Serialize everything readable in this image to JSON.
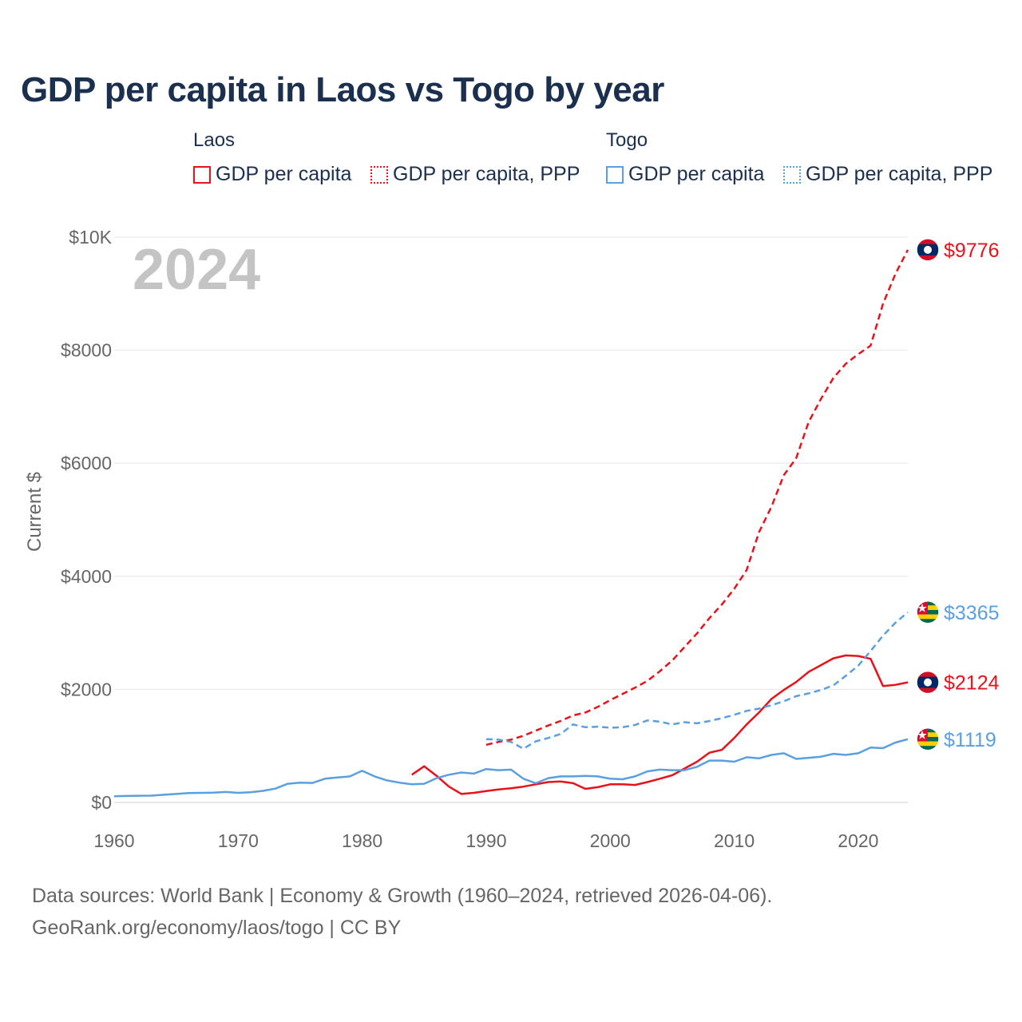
{
  "title": "GDP per capita in Laos vs Togo by year",
  "legend": {
    "groups": [
      {
        "name": "Laos",
        "items": [
          "GDP per capita",
          "GDP per capita, PPP"
        ]
      },
      {
        "name": "Togo",
        "items": [
          "GDP per capita",
          "GDP per capita, PPP"
        ]
      }
    ]
  },
  "footer": {
    "sources": "Data sources: World Bank | Economy & Growth (1960–2024, retrieved 2026-04-06).",
    "credit": "GeoRank.org/economy/laos/togo | CC BY"
  },
  "colors": {
    "laos": "#e8121b",
    "togo": "#5aa0e0",
    "grid": "#e6e6e6",
    "axis_text": "#666666",
    "year_watermark": "#c4c4c4"
  },
  "chart_data": {
    "type": "line",
    "title": "GDP per capita in Laos vs Togo by year",
    "xlabel": "",
    "ylabel": "Current $",
    "xlim": [
      1960,
      2024
    ],
    "ylim": [
      0,
      10000
    ],
    "year_label": "2024",
    "x_ticks": [
      1960,
      1970,
      1980,
      1990,
      2000,
      2010,
      2020
    ],
    "x_tick_labels": [
      "1960",
      "1970",
      "1980",
      "1990",
      "2000",
      "2010",
      "2020"
    ],
    "y_ticks": [
      0,
      2000,
      4000,
      6000,
      8000,
      10000
    ],
    "y_tick_labels": [
      "$0",
      "$2000",
      "$4000",
      "$6000",
      "$8000",
      "$10K"
    ],
    "series": [
      {
        "name": "Laos GDP per capita",
        "country": "laos",
        "style": "solid",
        "end_label": "$2124",
        "points": [
          [
            1984,
            490
          ],
          [
            1985,
            640
          ],
          [
            1986,
            470
          ],
          [
            1987,
            280
          ],
          [
            1988,
            150
          ],
          [
            1989,
            170
          ],
          [
            1990,
            200
          ],
          [
            1991,
            230
          ],
          [
            1992,
            250
          ],
          [
            1993,
            280
          ],
          [
            1994,
            320
          ],
          [
            1995,
            360
          ],
          [
            1996,
            370
          ],
          [
            1997,
            340
          ],
          [
            1998,
            240
          ],
          [
            1999,
            270
          ],
          [
            2000,
            320
          ],
          [
            2001,
            320
          ],
          [
            2002,
            310
          ],
          [
            2003,
            360
          ],
          [
            2004,
            420
          ],
          [
            2005,
            480
          ],
          [
            2006,
            600
          ],
          [
            2007,
            720
          ],
          [
            2008,
            880
          ],
          [
            2009,
            930
          ],
          [
            2010,
            1140
          ],
          [
            2011,
            1380
          ],
          [
            2012,
            1590
          ],
          [
            2013,
            1830
          ],
          [
            2014,
            1990
          ],
          [
            2015,
            2130
          ],
          [
            2016,
            2310
          ],
          [
            2017,
            2430
          ],
          [
            2018,
            2550
          ],
          [
            2019,
            2600
          ],
          [
            2020,
            2590
          ],
          [
            2021,
            2540
          ],
          [
            2022,
            2060
          ],
          [
            2023,
            2080
          ],
          [
            2024,
            2124
          ]
        ]
      },
      {
        "name": "Laos GDP per capita, PPP",
        "country": "laos",
        "style": "dashed",
        "end_label": "$9776",
        "points": [
          [
            1990,
            1020
          ],
          [
            1991,
            1070
          ],
          [
            1992,
            1110
          ],
          [
            1993,
            1180
          ],
          [
            1994,
            1270
          ],
          [
            1995,
            1360
          ],
          [
            1996,
            1440
          ],
          [
            1997,
            1540
          ],
          [
            1998,
            1590
          ],
          [
            1999,
            1690
          ],
          [
            2000,
            1810
          ],
          [
            2001,
            1920
          ],
          [
            2002,
            2030
          ],
          [
            2003,
            2150
          ],
          [
            2004,
            2320
          ],
          [
            2005,
            2510
          ],
          [
            2006,
            2750
          ],
          [
            2007,
            2990
          ],
          [
            2008,
            3260
          ],
          [
            2009,
            3500
          ],
          [
            2010,
            3780
          ],
          [
            2011,
            4110
          ],
          [
            2012,
            4780
          ],
          [
            2013,
            5230
          ],
          [
            2014,
            5790
          ],
          [
            2015,
            6090
          ],
          [
            2016,
            6730
          ],
          [
            2017,
            7140
          ],
          [
            2018,
            7510
          ],
          [
            2019,
            7760
          ],
          [
            2020,
            7930
          ],
          [
            2021,
            8080
          ],
          [
            2022,
            8820
          ],
          [
            2023,
            9350
          ],
          [
            2024,
            9776
          ]
        ]
      },
      {
        "name": "Togo GDP per capita",
        "country": "togo",
        "style": "solid",
        "end_label": "$1119",
        "points": [
          [
            1960,
            110
          ],
          [
            1961,
            115
          ],
          [
            1962,
            118
          ],
          [
            1963,
            120
          ],
          [
            1964,
            135
          ],
          [
            1965,
            150
          ],
          [
            1966,
            165
          ],
          [
            1967,
            170
          ],
          [
            1968,
            172
          ],
          [
            1969,
            185
          ],
          [
            1970,
            170
          ],
          [
            1971,
            180
          ],
          [
            1972,
            205
          ],
          [
            1973,
            245
          ],
          [
            1974,
            330
          ],
          [
            1975,
            350
          ],
          [
            1976,
            345
          ],
          [
            1977,
            420
          ],
          [
            1978,
            440
          ],
          [
            1979,
            460
          ],
          [
            1980,
            560
          ],
          [
            1981,
            460
          ],
          [
            1982,
            390
          ],
          [
            1983,
            350
          ],
          [
            1984,
            320
          ],
          [
            1985,
            330
          ],
          [
            1986,
            430
          ],
          [
            1987,
            490
          ],
          [
            1988,
            530
          ],
          [
            1989,
            510
          ],
          [
            1990,
            590
          ],
          [
            1991,
            570
          ],
          [
            1992,
            580
          ],
          [
            1993,
            420
          ],
          [
            1994,
            340
          ],
          [
            1995,
            430
          ],
          [
            1996,
            460
          ],
          [
            1997,
            460
          ],
          [
            1998,
            470
          ],
          [
            1999,
            460
          ],
          [
            2000,
            420
          ],
          [
            2001,
            410
          ],
          [
            2002,
            460
          ],
          [
            2003,
            550
          ],
          [
            2004,
            580
          ],
          [
            2005,
            570
          ],
          [
            2006,
            570
          ],
          [
            2007,
            630
          ],
          [
            2008,
            740
          ],
          [
            2009,
            740
          ],
          [
            2010,
            720
          ],
          [
            2011,
            800
          ],
          [
            2012,
            780
          ],
          [
            2013,
            840
          ],
          [
            2014,
            870
          ],
          [
            2015,
            770
          ],
          [
            2016,
            790
          ],
          [
            2017,
            810
          ],
          [
            2018,
            860
          ],
          [
            2019,
            840
          ],
          [
            2020,
            870
          ],
          [
            2021,
            970
          ],
          [
            2022,
            960
          ],
          [
            2023,
            1060
          ],
          [
            2024,
            1119
          ]
        ]
      },
      {
        "name": "Togo GDP per capita, PPP",
        "country": "togo",
        "style": "dashed",
        "end_label": "$3365",
        "points": [
          [
            1990,
            1120
          ],
          [
            1991,
            1110
          ],
          [
            1992,
            1070
          ],
          [
            1993,
            950
          ],
          [
            1994,
            1080
          ],
          [
            1995,
            1140
          ],
          [
            1996,
            1210
          ],
          [
            1997,
            1380
          ],
          [
            1998,
            1330
          ],
          [
            1999,
            1340
          ],
          [
            2000,
            1320
          ],
          [
            2001,
            1330
          ],
          [
            2002,
            1370
          ],
          [
            2003,
            1450
          ],
          [
            2004,
            1430
          ],
          [
            2005,
            1380
          ],
          [
            2006,
            1420
          ],
          [
            2007,
            1400
          ],
          [
            2008,
            1440
          ],
          [
            2009,
            1490
          ],
          [
            2010,
            1550
          ],
          [
            2011,
            1620
          ],
          [
            2012,
            1660
          ],
          [
            2013,
            1720
          ],
          [
            2014,
            1790
          ],
          [
            2015,
            1880
          ],
          [
            2016,
            1930
          ],
          [
            2017,
            1990
          ],
          [
            2018,
            2070
          ],
          [
            2019,
            2240
          ],
          [
            2020,
            2420
          ],
          [
            2021,
            2680
          ],
          [
            2022,
            2950
          ],
          [
            2023,
            3180
          ],
          [
            2024,
            3365
          ]
        ]
      }
    ]
  }
}
